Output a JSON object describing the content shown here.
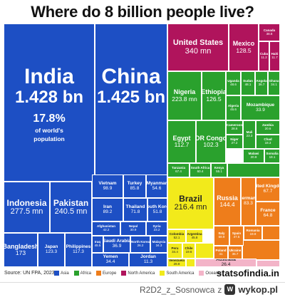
{
  "title": "Where do 8 billion people live?",
  "colors": {
    "Asia": "#1d4fc4",
    "Africa": "#2aa12d",
    "Europe": "#ee7d1b",
    "North America": "#b0145c",
    "South America": "#f2ea1b",
    "Oceania": "#f3b4c8"
  },
  "legend": [
    "Asia",
    "Africa",
    "Europe",
    "North America",
    "South America",
    "Oceania"
  ],
  "source": "Source: UN FPA, 2023",
  "brand": "statsofindia.in",
  "credit": {
    "user": "R2D2_z_Sosnowca",
    "site": "wykop.pl",
    "z": "z"
  },
  "chart_data": {
    "type": "treemap",
    "title": "Where do 8 billion people live?",
    "unit": "mn",
    "items": [
      {
        "name": "India",
        "value": "1.428 bn",
        "continent": "Asia",
        "extra": "17.8% of world's population",
        "big": true
      },
      {
        "name": "China",
        "value": "1.425 bn",
        "continent": "Asia",
        "big": true
      },
      {
        "name": "Indonesia",
        "value": "277.5 mn",
        "continent": "Asia"
      },
      {
        "name": "Pakistan",
        "value": "240.5 mn",
        "continent": "Asia"
      },
      {
        "name": "Bangladesh",
        "value": "173",
        "continent": "Asia"
      },
      {
        "name": "Japan",
        "value": "123.3",
        "continent": "Asia"
      },
      {
        "name": "Philippines",
        "value": "117.3",
        "continent": "Asia"
      },
      {
        "name": "Vietnam",
        "value": "98.9",
        "continent": "Asia"
      },
      {
        "name": "Turkey",
        "value": "85.8",
        "continent": "Asia"
      },
      {
        "name": "Myanmar",
        "value": "54.6",
        "continent": "Asia"
      },
      {
        "name": "Iran",
        "value": "89.2",
        "continent": "Asia"
      },
      {
        "name": "Thailand",
        "value": "71.8",
        "continent": "Asia"
      },
      {
        "name": "South Korea",
        "value": "51.8",
        "continent": "Asia"
      },
      {
        "name": "Afghanistan",
        "value": "42.2",
        "continent": "Asia"
      },
      {
        "name": "Nepal",
        "value": "30.9",
        "continent": "Asia"
      },
      {
        "name": "Syria",
        "value": "23.2",
        "continent": "Asia"
      },
      {
        "name": "Iraq",
        "value": "45.5",
        "continent": "Asia"
      },
      {
        "name": "Saudi Arabia",
        "value": "36.9",
        "continent": "Asia"
      },
      {
        "name": "North Korea",
        "value": "26.2",
        "continent": "Asia"
      },
      {
        "name": "Yemen",
        "value": "34.4",
        "continent": "Asia"
      },
      {
        "name": "Malaysia",
        "value": "34.3",
        "continent": "Asia"
      },
      {
        "name": "Jordan",
        "value": "11.3",
        "continent": "Asia"
      },
      {
        "name": "United States",
        "value": "340 mn",
        "continent": "North America"
      },
      {
        "name": "Mexico",
        "value": "128.5",
        "continent": "North America"
      },
      {
        "name": "Canada",
        "value": "38.8",
        "continent": "North America"
      },
      {
        "name": "Cuba",
        "value": "11.2",
        "continent": "North America"
      },
      {
        "name": "Haiti",
        "value": "11.7",
        "continent": "North America"
      },
      {
        "name": "Nigeria",
        "value": "223.8 mn",
        "continent": "Africa"
      },
      {
        "name": "Ethiopia",
        "value": "126.5",
        "continent": "Africa"
      },
      {
        "name": "Uganda",
        "value": "48.6",
        "continent": "Africa"
      },
      {
        "name": "Sudan",
        "value": "48.1",
        "continent": "Africa"
      },
      {
        "name": "Angola",
        "value": "36.7",
        "continent": "Africa"
      },
      {
        "name": "Ghana",
        "value": "34.1",
        "continent": "Africa"
      },
      {
        "name": "Algeria",
        "value": "45.6",
        "continent": "Africa"
      },
      {
        "name": "Mozambique",
        "value": "33.9",
        "continent": "Africa"
      },
      {
        "name": "Egypt",
        "value": "112.7",
        "continent": "Africa"
      },
      {
        "name": "DR Congo",
        "value": "102.3",
        "continent": "Africa"
      },
      {
        "name": "Cameroon",
        "value": "28.6",
        "continent": "Africa"
      },
      {
        "name": "Niger",
        "value": "27.2",
        "continent": "Africa"
      },
      {
        "name": "Mali",
        "value": "23.3",
        "continent": "Africa"
      },
      {
        "name": "Zambia",
        "value": "20.6",
        "continent": "Africa"
      },
      {
        "name": "Chad",
        "value": "18.3",
        "continent": "Africa"
      },
      {
        "name": "Malawi",
        "value": "20.9",
        "continent": "Africa"
      },
      {
        "name": "Somalia",
        "value": "18.1",
        "continent": "Africa"
      },
      {
        "name": "Tanzania",
        "value": "67.4",
        "continent": "Africa"
      },
      {
        "name": "South Africa",
        "value": "60.4",
        "continent": "Africa"
      },
      {
        "name": "Kenya",
        "value": "55.1",
        "continent": "Africa"
      },
      {
        "name": "Brazil",
        "value": "216.4 mn",
        "continent": "South America"
      },
      {
        "name": "Colombia",
        "value": "52.1",
        "continent": "South America"
      },
      {
        "name": "Argentina",
        "value": "45.8",
        "continent": "South America"
      },
      {
        "name": "Peru",
        "value": "34.4",
        "continent": "South America"
      },
      {
        "name": "Chile",
        "value": "19.6",
        "continent": "South America"
      },
      {
        "name": "Venezuela",
        "value": "28.8",
        "continent": "South America"
      },
      {
        "name": "Russia",
        "value": "144.4",
        "continent": "Europe"
      },
      {
        "name": "Germany",
        "value": "83.3",
        "continent": "Europe"
      },
      {
        "name": "United Kingdom",
        "value": "67.7",
        "continent": "Europe"
      },
      {
        "name": "France",
        "value": "64.8",
        "continent": "Europe"
      },
      {
        "name": "Italy",
        "value": "58.9",
        "continent": "Europe"
      },
      {
        "name": "Spain",
        "value": "47.5",
        "continent": "Europe"
      },
      {
        "name": "Poland",
        "value": "41",
        "continent": "Europe"
      },
      {
        "name": "Ukraine",
        "value": "36.7",
        "continent": "Europe"
      },
      {
        "name": "Romania",
        "value": "19.9",
        "continent": "Europe"
      },
      {
        "name": "Australia",
        "value": "26.4",
        "continent": "Oceania"
      }
    ]
  }
}
